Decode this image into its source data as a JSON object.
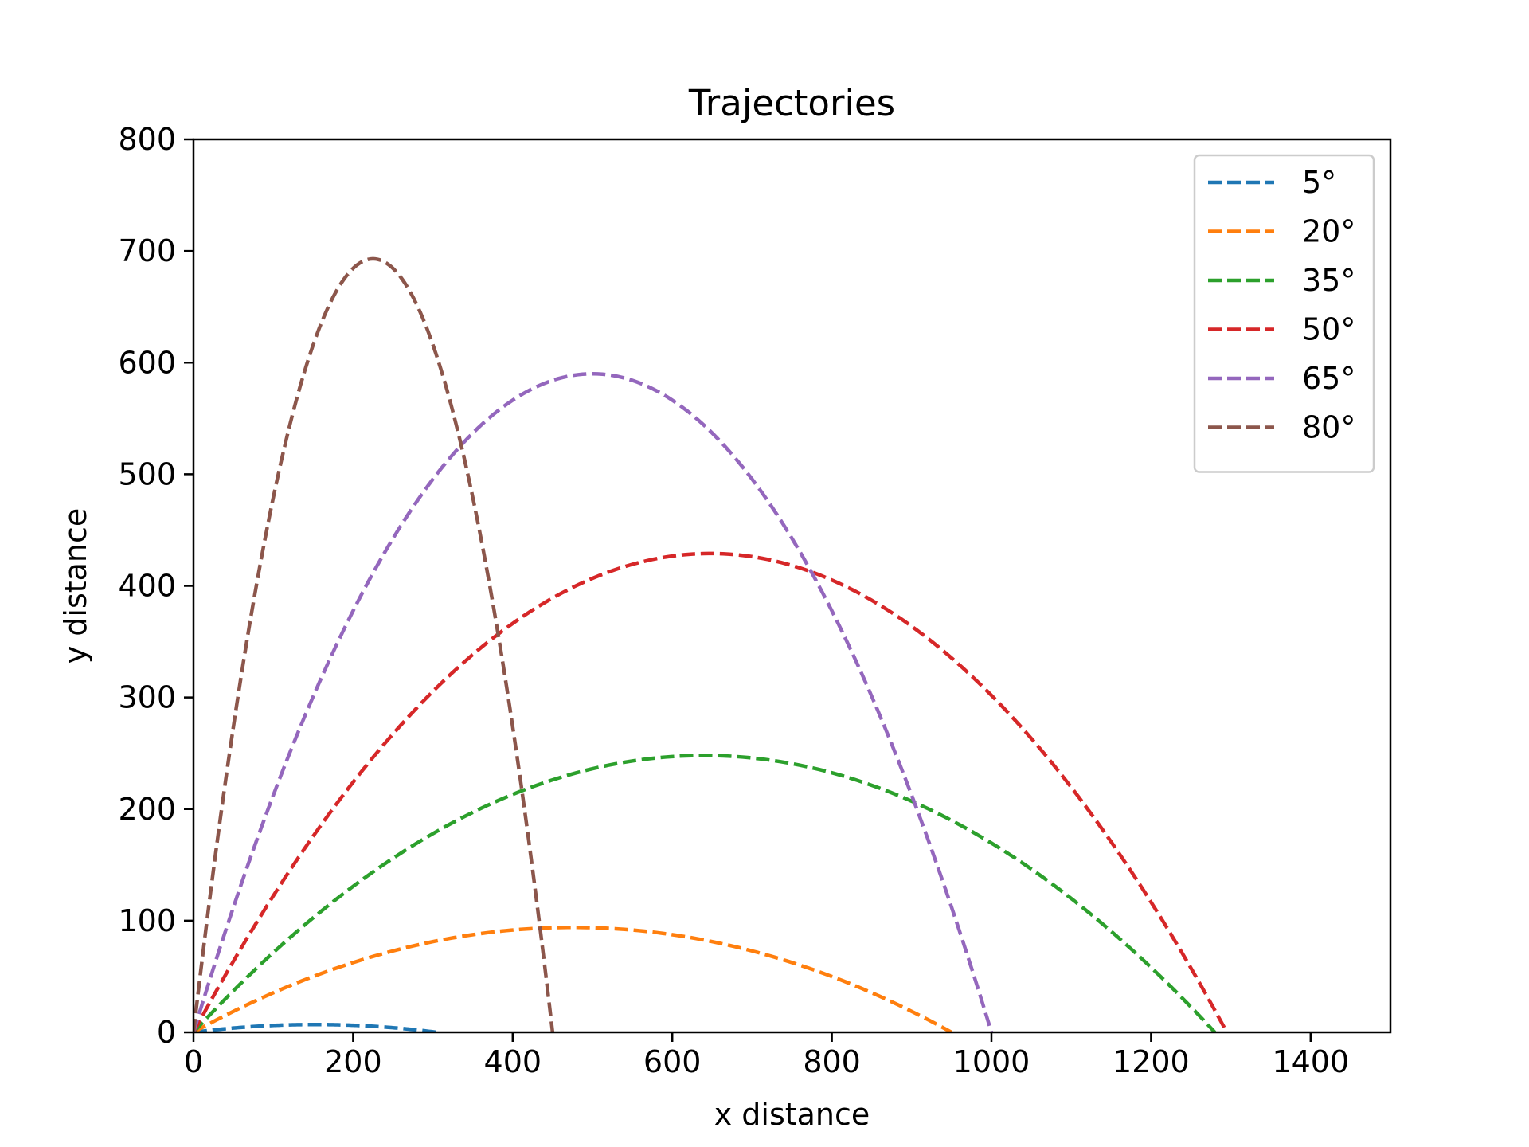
{
  "chart_data": {
    "type": "line",
    "title": "Trajectories",
    "xlabel": "x distance",
    "ylabel": "y distance",
    "xlim": [
      0,
      1500
    ],
    "ylim": [
      0,
      800
    ],
    "xticks": [
      0,
      200,
      400,
      600,
      800,
      1000,
      1200,
      1400
    ],
    "yticks": [
      0,
      100,
      200,
      300,
      400,
      500,
      600,
      700,
      800
    ],
    "grid": false,
    "legend_position": "top-right",
    "line_style": "dashed",
    "series": [
      {
        "name": "5°",
        "color": "#1f77b4",
        "angle_deg": 5,
        "range": 305,
        "max_height": 7
      },
      {
        "name": "20°",
        "color": "#ff7f0e",
        "angle_deg": 20,
        "range": 950,
        "max_height": 94
      },
      {
        "name": "35°",
        "color": "#2ca02c",
        "angle_deg": 35,
        "range": 1280,
        "max_height": 248
      },
      {
        "name": "50°",
        "color": "#d62728",
        "angle_deg": 50,
        "range": 1295,
        "max_height": 429
      },
      {
        "name": "65°",
        "color": "#9467bd",
        "angle_deg": 65,
        "range": 1000,
        "max_height": 590
      },
      {
        "name": "80°",
        "color": "#8c564b",
        "angle_deg": 80,
        "range": 450,
        "max_height": 693
      }
    ]
  }
}
